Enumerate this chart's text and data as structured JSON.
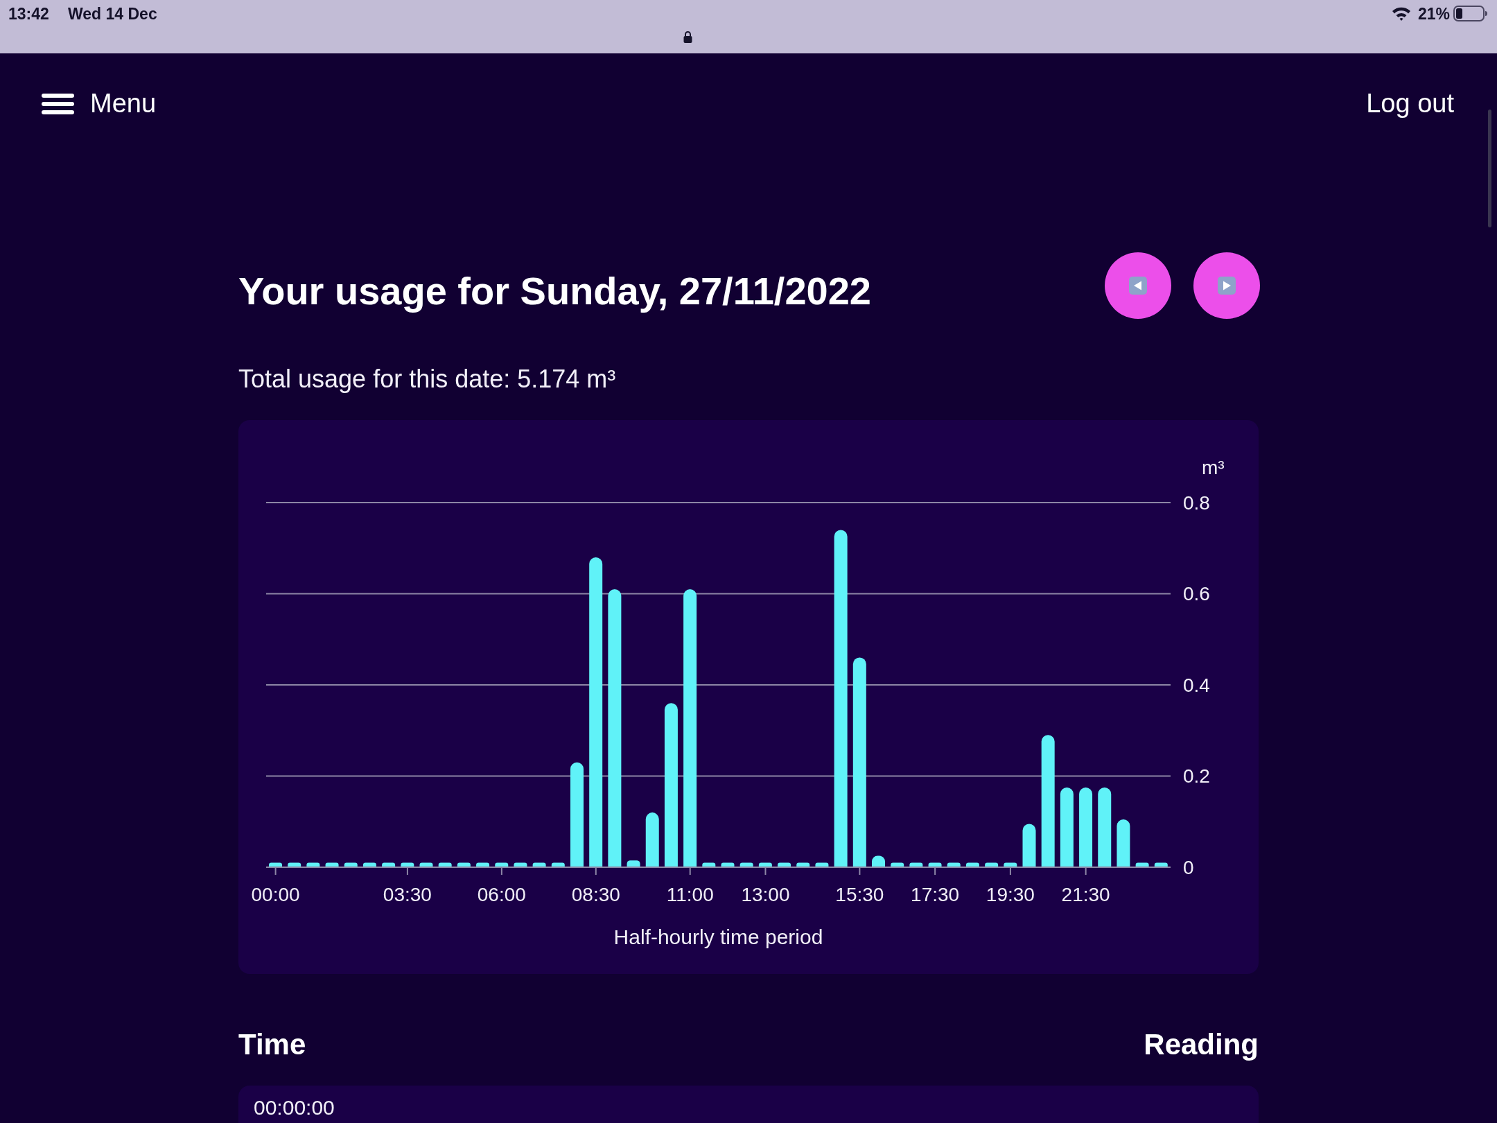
{
  "chart_data": {
    "type": "bar",
    "title": "Your usage for Sunday, 27/11/2022",
    "subtitle": "Total usage for this date: 5.174 m³",
    "xlabel": "Half-hourly time period",
    "ylabel": "m³",
    "categories": [
      "00:00",
      null,
      null,
      null,
      null,
      null,
      null,
      "03:30",
      null,
      null,
      null,
      null,
      "06:00",
      null,
      null,
      null,
      null,
      "08:30",
      null,
      null,
      null,
      null,
      "11:00",
      null,
      null,
      null,
      "13:00",
      null,
      null,
      null,
      null,
      "15:30",
      null,
      null,
      null,
      "17:30",
      null,
      null,
      null,
      "19:30",
      null,
      null,
      null,
      "21:30",
      null,
      null,
      null,
      null
    ],
    "values": [
      0.01,
      0.01,
      0.01,
      0.01,
      0.01,
      0.01,
      0.01,
      0.01,
      0.01,
      0.01,
      0.01,
      0.01,
      0.01,
      0.01,
      0.01,
      0.01,
      0.23,
      0.68,
      0.61,
      0.015,
      0.12,
      0.36,
      0.61,
      0.01,
      0.01,
      0.01,
      0.01,
      0.01,
      0.01,
      0.01,
      0.74,
      0.46,
      0.025,
      0.01,
      0.01,
      0.01,
      0.01,
      0.01,
      0.01,
      0.01,
      0.095,
      0.29,
      0.175,
      0.175,
      0.175,
      0.105,
      0.01,
      0.01
    ],
    "color": "#60f2f8",
    "ylim": [
      0,
      0.8
    ],
    "yticks": [
      0,
      0.2,
      0.4,
      0.6,
      0.8
    ],
    "grid": "y",
    "annotations": [
      "13:42",
      "Wed 14 Dec",
      "21%",
      "Menu",
      "Log out",
      "Time",
      "Reading",
      "00:00:00"
    ]
  }
}
